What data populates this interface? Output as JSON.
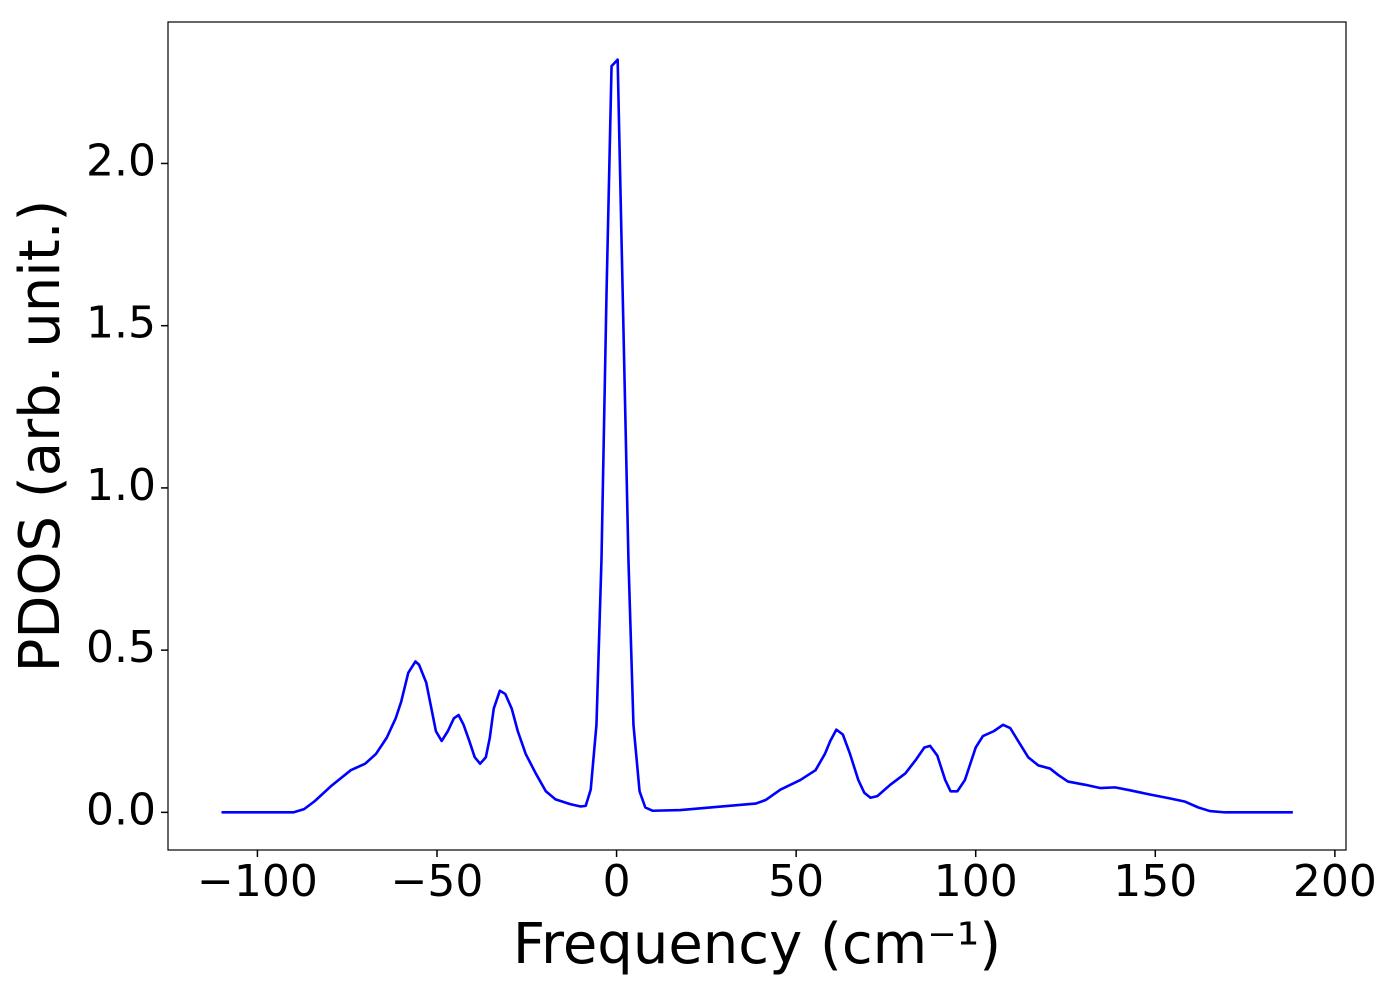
{
  "chart_data": {
    "type": "line",
    "xlabel": "Frequency (cm⁻¹)",
    "ylabel": "PDOS (arb. unit.)",
    "color": "#0000ff",
    "x": [
      -110,
      -90,
      -87,
      -84,
      -79.6,
      -74,
      -70,
      -67,
      -64,
      -61.5,
      -60,
      -58,
      -56,
      -55,
      -53,
      -50.3,
      -48.7,
      -47,
      -45.3,
      -44,
      -42.6,
      -41,
      -39.5,
      -38,
      -36.4,
      -35.3,
      -34.2,
      -32.5,
      -31,
      -29.2,
      -27.5,
      -25.3,
      -22.5,
      -19.7,
      -17,
      -12.8,
      -10,
      -8.6,
      -7.2,
      -5.6,
      -4.2,
      -2.8,
      -1.4,
      0.3,
      1.7,
      3.3,
      4.7,
      6.4,
      8,
      10,
      17.8,
      29,
      38.7,
      41.5,
      45.6,
      51.2,
      55.4,
      58,
      59.5,
      61.2,
      63,
      65,
      67.3,
      69,
      70.7,
      72.6,
      76.2,
      80.4,
      83.2,
      85.7,
      87.3,
      89.3,
      91.5,
      93,
      94.9,
      97,
      100,
      102,
      105,
      107.6,
      109.6,
      111.8,
      114.6,
      117.4,
      120.7,
      123,
      125.7,
      130.5,
      134.6,
      138.8,
      143,
      148.5,
      154,
      158.3,
      162,
      165.2,
      169.4,
      188.3
    ],
    "values": [
      0,
      0,
      0.01,
      0.035,
      0.08,
      0.13,
      0.15,
      0.18,
      0.23,
      0.29,
      0.34,
      0.43,
      0.465,
      0.455,
      0.4,
      0.25,
      0.22,
      0.25,
      0.29,
      0.3,
      0.27,
      0.22,
      0.17,
      0.15,
      0.17,
      0.23,
      0.32,
      0.375,
      0.365,
      0.32,
      0.25,
      0.18,
      0.12,
      0.065,
      0.04,
      0.025,
      0.018,
      0.02,
      0.07,
      0.27,
      0.78,
      1.6,
      2.3,
      2.32,
      1.6,
      0.78,
      0.27,
      0.065,
      0.015,
      0.005,
      0.007,
      0.018,
      0.027,
      0.038,
      0.07,
      0.1,
      0.13,
      0.18,
      0.22,
      0.255,
      0.24,
      0.18,
      0.1,
      0.06,
      0.045,
      0.05,
      0.085,
      0.12,
      0.16,
      0.2,
      0.205,
      0.175,
      0.1,
      0.065,
      0.065,
      0.1,
      0.2,
      0.235,
      0.25,
      0.27,
      0.26,
      0.22,
      0.17,
      0.145,
      0.135,
      0.115,
      0.095,
      0.085,
      0.075,
      0.077,
      0.068,
      0.055,
      0.043,
      0.033,
      0.015,
      0.004,
      0,
      0
    ],
    "xlim": [
      -124.9,
      203.1
    ],
    "ylim": [
      -0.116,
      2.436
    ],
    "xticks": [
      {
        "value": -100,
        "label": "−100"
      },
      {
        "value": -50,
        "label": "−50"
      },
      0,
      50,
      100,
      150,
      200
    ],
    "yticks": [
      {
        "value": 0,
        "label": "0.0"
      },
      {
        "value": 0.5,
        "label": "0.5"
      },
      {
        "value": 1,
        "label": "1.0"
      },
      {
        "value": 1.5,
        "label": "1.5"
      },
      {
        "value": 2,
        "label": "2.0"
      }
    ],
    "grid": false
  }
}
